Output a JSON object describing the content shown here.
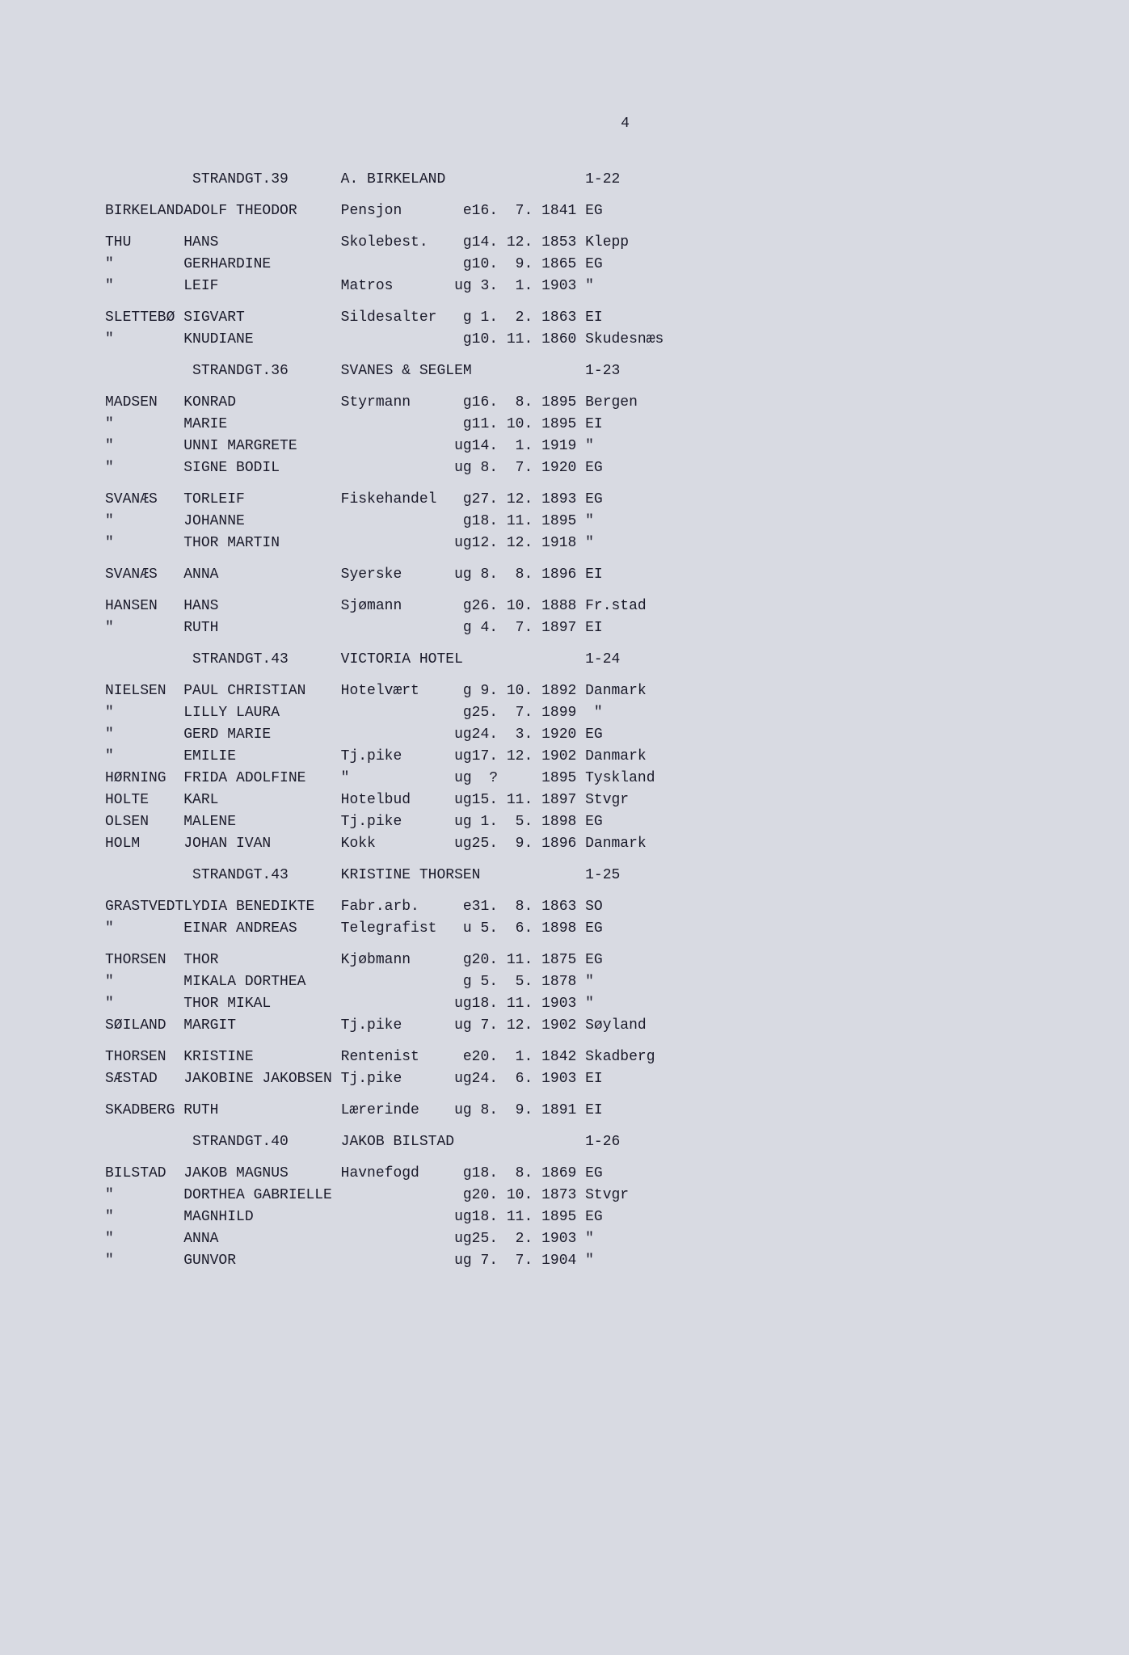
{
  "page_number": "4",
  "font_family": "Courier New",
  "font_size": 18,
  "text_color": "#1a1a2a",
  "background_color": "#d8dae2",
  "sections": [
    {
      "address": "STRANDGT.39",
      "owner": "A. BIRKELAND",
      "ref": "1-22",
      "groups": [
        [
          {
            "surname": "BIRKELAND",
            "given": "ADOLF THEODOR",
            "occupation": "Pensjon",
            "status": "e",
            "day": "16.",
            "month": "7.",
            "year": "1841",
            "place": "EG"
          }
        ],
        [
          {
            "surname": "THU",
            "given": "HANS",
            "occupation": "Skolebest.",
            "status": "g",
            "day": "14.",
            "month": "12.",
            "year": "1853",
            "place": "Klepp"
          },
          {
            "surname": "\"",
            "given": "GERHARDINE",
            "occupation": "",
            "status": "g",
            "day": "10.",
            "month": "9.",
            "year": "1865",
            "place": "EG"
          },
          {
            "surname": "\"",
            "given": "LEIF",
            "occupation": "Matros",
            "status": "ug",
            "day": "3.",
            "month": "1.",
            "year": "1903",
            "place": "\""
          }
        ],
        [
          {
            "surname": "SLETTEBØ",
            "given": "SIGVART",
            "occupation": "Sildesalter",
            "status": "g",
            "day": "1.",
            "month": "2.",
            "year": "1863",
            "place": "EI"
          },
          {
            "surname": "\"",
            "given": "KNUDIANE",
            "occupation": "",
            "status": "g",
            "day": "10.",
            "month": "11.",
            "year": "1860",
            "place": "Skudesnæs"
          }
        ]
      ]
    },
    {
      "address": "STRANDGT.36",
      "owner": "SVANES & SEGLEM",
      "ref": "1-23",
      "groups": [
        [
          {
            "surname": "MADSEN",
            "given": "KONRAD",
            "occupation": "Styrmann",
            "status": "g",
            "day": "16.",
            "month": "8.",
            "year": "1895",
            "place": "Bergen"
          },
          {
            "surname": "\"",
            "given": "MARIE",
            "occupation": "",
            "status": "g",
            "day": "11.",
            "month": "10.",
            "year": "1895",
            "place": "EI"
          },
          {
            "surname": "\"",
            "given": "UNNI MARGRETE",
            "occupation": "",
            "status": "ug",
            "day": "14.",
            "month": "1.",
            "year": "1919",
            "place": "\""
          },
          {
            "surname": "\"",
            "given": "SIGNE BODIL",
            "occupation": "",
            "status": "ug",
            "day": "8.",
            "month": "7.",
            "year": "1920",
            "place": "EG"
          }
        ],
        [
          {
            "surname": "SVANÆS",
            "given": "TORLEIF",
            "occupation": "Fiskehandel",
            "status": "g",
            "day": "27.",
            "month": "12.",
            "year": "1893",
            "place": "EG"
          },
          {
            "surname": "\"",
            "given": "JOHANNE",
            "occupation": "",
            "status": "g",
            "day": "18.",
            "month": "11.",
            "year": "1895",
            "place": "\""
          },
          {
            "surname": "\"",
            "given": "THOR MARTIN",
            "occupation": "",
            "status": "ug",
            "day": "12.",
            "month": "12.",
            "year": "1918",
            "place": "\""
          }
        ],
        [
          {
            "surname": "SVANÆS",
            "given": "ANNA",
            "occupation": "Syerske",
            "status": "ug",
            "day": "8.",
            "month": "8.",
            "year": "1896",
            "place": "EI"
          }
        ],
        [
          {
            "surname": "HANSEN",
            "given": "HANS",
            "occupation": "Sjømann",
            "status": "g",
            "day": "26.",
            "month": "10.",
            "year": "1888",
            "place": "Fr.stad"
          },
          {
            "surname": "\"",
            "given": "RUTH",
            "occupation": "",
            "status": "g",
            "day": "4.",
            "month": "7.",
            "year": "1897",
            "place": "EI"
          }
        ]
      ]
    },
    {
      "address": "STRANDGT.43",
      "owner": "VICTORIA HOTEL",
      "ref": "1-24",
      "groups": [
        [
          {
            "surname": "NIELSEN",
            "given": "PAUL CHRISTIAN",
            "occupation": "Hotelvært",
            "status": "g",
            "day": "9.",
            "month": "10.",
            "year": "1892",
            "place": "Danmark"
          },
          {
            "surname": "\"",
            "given": "LILLY LAURA",
            "occupation": "",
            "status": "g",
            "day": "25.",
            "month": "7.",
            "year": "1899",
            "place": " \""
          },
          {
            "surname": "\"",
            "given": "GERD MARIE",
            "occupation": "",
            "status": "ug",
            "day": "24.",
            "month": "3.",
            "year": "1920",
            "place": "EG"
          },
          {
            "surname": "\"",
            "given": "EMILIE",
            "occupation": "Tj.pike",
            "status": "ug",
            "day": "17.",
            "month": "12.",
            "year": "1902",
            "place": "Danmark"
          },
          {
            "surname": "HØRNING",
            "given": "FRIDA ADOLFINE",
            "occupation": "\"",
            "status": "ug",
            "day": "?",
            "month": "",
            "year": "1895",
            "place": "Tyskland"
          },
          {
            "surname": "HOLTE",
            "given": "KARL",
            "occupation": "Hotelbud",
            "status": "ug",
            "day": "15.",
            "month": "11.",
            "year": "1897",
            "place": "Stvgr"
          },
          {
            "surname": "OLSEN",
            "given": "MALENE",
            "occupation": "Tj.pike",
            "status": "ug",
            "day": "1.",
            "month": "5.",
            "year": "1898",
            "place": "EG"
          },
          {
            "surname": "HOLM",
            "given": "JOHAN IVAN",
            "occupation": "Kokk",
            "status": "ug",
            "day": "25.",
            "month": "9.",
            "year": "1896",
            "place": "Danmark"
          }
        ]
      ]
    },
    {
      "address": "STRANDGT.43",
      "owner": "KRISTINE THORSEN",
      "ref": "1-25",
      "groups": [
        [
          {
            "surname": "GRASTVEDT",
            "given": "LYDIA BENEDIKTE",
            "occupation": "Fabr.arb.",
            "status": "e",
            "day": "31.",
            "month": "8.",
            "year": "1863",
            "place": "SO"
          },
          {
            "surname": "\"",
            "given": "EINAR ANDREAS",
            "occupation": "Telegrafist",
            "status": "u",
            "day": "5.",
            "month": "6.",
            "year": "1898",
            "place": "EG"
          }
        ],
        [
          {
            "surname": "THORSEN",
            "given": "THOR",
            "occupation": "Kjøbmann",
            "status": "g",
            "day": "20.",
            "month": "11.",
            "year": "1875",
            "place": "EG"
          },
          {
            "surname": "\"",
            "given": "MIKALA DORTHEA",
            "occupation": "",
            "status": "g",
            "day": "5.",
            "month": "5.",
            "year": "1878",
            "place": "\""
          },
          {
            "surname": "\"",
            "given": "THOR MIKAL",
            "occupation": "",
            "status": "ug",
            "day": "18.",
            "month": "11.",
            "year": "1903",
            "place": "\""
          },
          {
            "surname": "SØILAND",
            "given": "MARGIT",
            "occupation": "Tj.pike",
            "status": "ug",
            "day": "7.",
            "month": "12.",
            "year": "1902",
            "place": "Søyland"
          }
        ],
        [
          {
            "surname": "THORSEN",
            "given": "KRISTINE",
            "occupation": "Rentenist",
            "status": "e",
            "day": "20.",
            "month": "1.",
            "year": "1842",
            "place": "Skadberg"
          },
          {
            "surname": "SÆSTAD",
            "given": "JAKOBINE JAKOBSEN",
            "occupation": "Tj.pike",
            "status": "ug",
            "day": "24.",
            "month": "6.",
            "year": "1903",
            "place": "EI"
          }
        ],
        [
          {
            "surname": "SKADBERG",
            "given": "RUTH",
            "occupation": "Lærerinde",
            "status": "ug",
            "day": "8.",
            "month": "9.",
            "year": "1891",
            "place": "EI"
          }
        ]
      ]
    },
    {
      "address": "STRANDGT.40",
      "owner": "JAKOB BILSTAD",
      "ref": "1-26",
      "groups": [
        [
          {
            "surname": "BILSTAD",
            "given": "JAKOB MAGNUS",
            "occupation": "Havnefogd",
            "status": "g",
            "day": "18.",
            "month": "8.",
            "year": "1869",
            "place": "EG"
          },
          {
            "surname": "\"",
            "given": "DORTHEA GABRIELLE",
            "occupation": "",
            "status": "g",
            "day": "20.",
            "month": "10.",
            "year": "1873",
            "place": "Stvgr"
          },
          {
            "surname": "\"",
            "given": "MAGNHILD",
            "occupation": "",
            "status": "ug",
            "day": "18.",
            "month": "11.",
            "year": "1895",
            "place": "EG"
          },
          {
            "surname": "\"",
            "given": "ANNA",
            "occupation": "",
            "status": "ug",
            "day": "25.",
            "month": "2.",
            "year": "1903",
            "place": "\""
          },
          {
            "surname": "\"",
            "given": "GUNVOR",
            "occupation": "",
            "status": "ug",
            "day": "7.",
            "month": "7.",
            "year": "1904",
            "place": "\""
          }
        ]
      ]
    }
  ],
  "col_widths": {
    "surname": 9,
    "given": 18,
    "occupation": 12,
    "status": 3,
    "day": 3,
    "month": 4,
    "year": 5
  },
  "header_cols": {
    "address_pad": 10,
    "owner_col": 27,
    "ref_col": 55
  }
}
